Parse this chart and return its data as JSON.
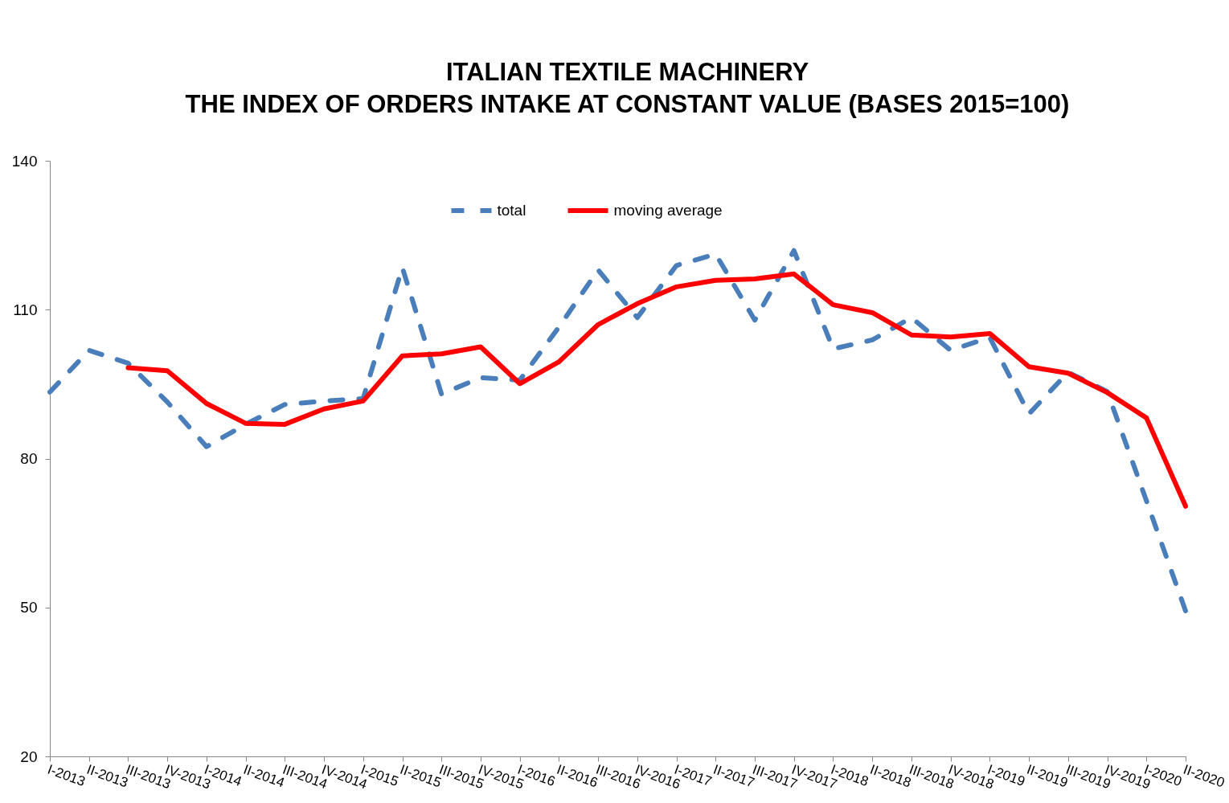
{
  "chart_data": {
    "type": "line",
    "title": "ITALIAN TEXTILE MACHINERY\nTHE INDEX OF ORDERS INTAKE AT CONSTANT VALUE (BASES 2015=100)",
    "categories": [
      "I-2013",
      "II-2013",
      "III-2013",
      "IV-2013",
      "I-2014",
      "II-2014",
      "III-2014",
      "IV-2014",
      "I-2015",
      "II-2015",
      "III-2015",
      "IV-2015",
      "I-2016",
      "II-2016",
      "III-2016",
      "IV-2016",
      "I-2017",
      "II-2017",
      "III-2017",
      "IV-2017",
      "I-2018",
      "II-2018",
      "III-2018",
      "IV-2018",
      "I-2019",
      "II-2019",
      "III-2019",
      "IV-2019",
      "I-2020",
      "II-2020"
    ],
    "series": [
      {
        "name": "total",
        "color": "#4a7ebb",
        "line_style": "dashed",
        "values": [
          93.4,
          101.8,
          99.2,
          91.4,
          82.4,
          86.9,
          90.9,
          91.6,
          92.1,
          118.5,
          93.0,
          96.3,
          95.8,
          106.5,
          118.0,
          108.4,
          118.9,
          121.2,
          107.9,
          121.9,
          102.1,
          103.9,
          108.4,
          101.8,
          104.4,
          89.0,
          97.4,
          93.5,
          71.5,
          49.3
        ]
      },
      {
        "name": "moving average",
        "color": "#ff0000",
        "line_style": "solid",
        "values": [
          null,
          null,
          98.3,
          97.7,
          91.1,
          87.1,
          86.9,
          90.0,
          91.6,
          100.7,
          101.1,
          102.5,
          95.1,
          99.5,
          107.0,
          111.2,
          114.6,
          115.9,
          116.2,
          117.2,
          111.0,
          109.4,
          104.9,
          104.5,
          105.2,
          98.5,
          97.2,
          93.3,
          88.2,
          70.4
        ]
      }
    ],
    "ylim": [
      20,
      140
    ],
    "yticks": [
      20,
      50,
      80,
      110,
      140
    ],
    "grid": false,
    "legend": "top"
  }
}
